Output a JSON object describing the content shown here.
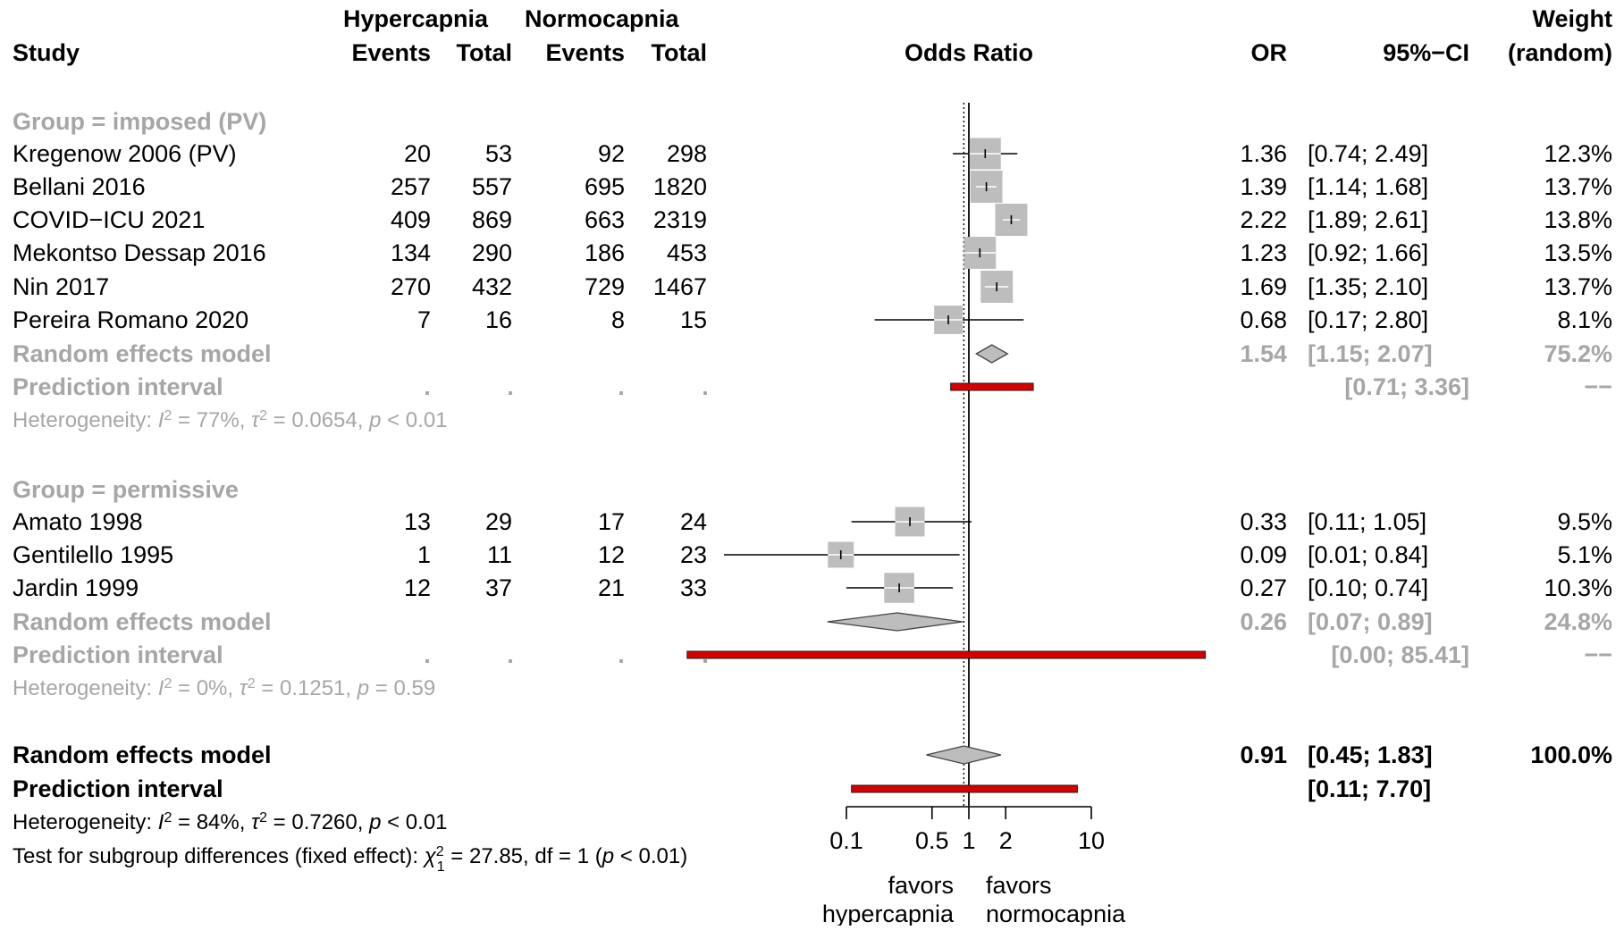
{
  "headers": {
    "hyper": "Hypercapnia",
    "normo": "Normocapnia",
    "weight": "Weight",
    "study": "Study",
    "events1": "Events",
    "total1": "Total",
    "events2": "Events",
    "total2": "Total",
    "odds_ratio": "Odds Ratio",
    "or": "OR",
    "ci": "95%−CI",
    "random": "(random)"
  },
  "colors": {
    "group_text": "#a6a6a6",
    "box": "#bdbdbd",
    "diamond": "#bdbdbd",
    "prediction": "#d40000"
  },
  "chart_data": {
    "type": "forest",
    "x_scale": "log",
    "x_ticks": [
      0.1,
      0.5,
      1,
      2,
      10
    ],
    "x_tick_labels": [
      "0.1",
      "0.5",
      "1",
      "2",
      "10"
    ],
    "x_limits": [
      0.1,
      10
    ],
    "reference_line": 1,
    "overall_effect_line": 0.91,
    "label_left": [
      "favors",
      "hypercapnia"
    ],
    "label_right": [
      "favors",
      "normocapnia"
    ],
    "groups": [
      {
        "label": "Group = imposed (PV)",
        "studies": [
          {
            "name": "Kregenow 2006 (PV)",
            "e1": "20",
            "n1": "53",
            "e2": "92",
            "n2": "298",
            "or": 1.36,
            "lo": 0.74,
            "hi": 2.49,
            "or_text": "1.36",
            "ci_text": "[0.74; 2.49]",
            "weight": 12.3,
            "weight_text": "12.3%"
          },
          {
            "name": "Bellani 2016",
            "e1": "257",
            "n1": "557",
            "e2": "695",
            "n2": "1820",
            "or": 1.39,
            "lo": 1.14,
            "hi": 1.68,
            "or_text": "1.39",
            "ci_text": "[1.14; 1.68]",
            "weight": 13.7,
            "weight_text": "13.7%"
          },
          {
            "name": "COVID−ICU 2021",
            "e1": "409",
            "n1": "869",
            "e2": "663",
            "n2": "2319",
            "or": 2.22,
            "lo": 1.89,
            "hi": 2.61,
            "or_text": "2.22",
            "ci_text": "[1.89; 2.61]",
            "weight": 13.8,
            "weight_text": "13.8%"
          },
          {
            "name": "Mekontso Dessap 2016",
            "e1": "134",
            "n1": "290",
            "e2": "186",
            "n2": "453",
            "or": 1.23,
            "lo": 0.92,
            "hi": 1.66,
            "or_text": "1.23",
            "ci_text": "[0.92; 1.66]",
            "weight": 13.5,
            "weight_text": "13.5%"
          },
          {
            "name": "Nin 2017",
            "e1": "270",
            "n1": "432",
            "e2": "729",
            "n2": "1467",
            "or": 1.69,
            "lo": 1.35,
            "hi": 2.1,
            "or_text": "1.69",
            "ci_text": "[1.35; 2.10]",
            "weight": 13.7,
            "weight_text": "13.7%"
          },
          {
            "name": "Pereira Romano 2020",
            "e1": "7",
            "n1": "16",
            "e2": "8",
            "n2": "15",
            "or": 0.68,
            "lo": 0.17,
            "hi": 2.8,
            "or_text": "0.68",
            "ci_text": "[0.17; 2.80]",
            "weight": 8.1,
            "weight_text": "8.1%"
          }
        ],
        "random_effects": {
          "label": "Random effects model",
          "or": 1.54,
          "lo": 1.15,
          "hi": 2.07,
          "or_text": "1.54",
          "ci_text": "[1.15; 2.07]",
          "weight_text": "75.2%"
        },
        "prediction": {
          "label": "Prediction interval",
          "lo": 0.71,
          "hi": 3.36,
          "ci_text": "[0.71; 3.36]",
          "weight_text": "−−"
        },
        "heterogeneity": {
          "prefix": "Heterogeneity: ",
          "i2": "77%",
          "tau2": "0.0654",
          "p": "< 0.01"
        }
      },
      {
        "label": "Group = permissive",
        "studies": [
          {
            "name": "Amato 1998",
            "e1": "13",
            "n1": "29",
            "e2": "17",
            "n2": "24",
            "or": 0.33,
            "lo": 0.11,
            "hi": 1.05,
            "or_text": "0.33",
            "ci_text": "[0.11; 1.05]",
            "weight": 9.5,
            "weight_text": "9.5%"
          },
          {
            "name": "Gentilello 1995",
            "e1": "1",
            "n1": "11",
            "e2": "12",
            "n2": "23",
            "or": 0.09,
            "lo": 0.01,
            "hi": 0.84,
            "or_text": "0.09",
            "ci_text": "[0.01; 0.84]",
            "weight": 5.1,
            "weight_text": "5.1%"
          },
          {
            "name": "Jardin 1999",
            "e1": "12",
            "n1": "37",
            "e2": "21",
            "n2": "33",
            "or": 0.27,
            "lo": 0.1,
            "hi": 0.74,
            "or_text": "0.27",
            "ci_text": "[0.10; 0.74]",
            "weight": 10.3,
            "weight_text": "10.3%"
          }
        ],
        "random_effects": {
          "label": "Random effects model",
          "or": 0.26,
          "lo": 0.07,
          "hi": 0.89,
          "or_text": "0.26",
          "ci_text": "[0.07; 0.89]",
          "weight_text": "24.8%"
        },
        "prediction": {
          "label": "Prediction interval",
          "lo": 0.005,
          "hi": 85.41,
          "ci_text": "[0.00; 85.41]",
          "weight_text": "−−"
        },
        "heterogeneity": {
          "prefix": "Heterogeneity: ",
          "i2": "0%",
          "tau2": "0.1251",
          "p": "= 0.59"
        }
      }
    ],
    "overall": {
      "random_effects": {
        "label": "Random effects model",
        "or": 0.91,
        "lo": 0.45,
        "hi": 1.83,
        "or_text": "0.91",
        "ci_text": "[0.45; 1.83]",
        "weight_text": "100.0%"
      },
      "prediction": {
        "label": "Prediction interval",
        "lo": 0.11,
        "hi": 7.7,
        "ci_text": "[0.11; 7.70]"
      },
      "heterogeneity": {
        "prefix": "Heterogeneity: ",
        "i2": "84%",
        "tau2": "0.7260",
        "p": "< 0.01"
      },
      "subgroup_test": {
        "prefix": "Test for subgroup differences (fixed effect): ",
        "chi2": "27.85",
        "df": "df = 1",
        "p": "< 0.01"
      }
    }
  }
}
